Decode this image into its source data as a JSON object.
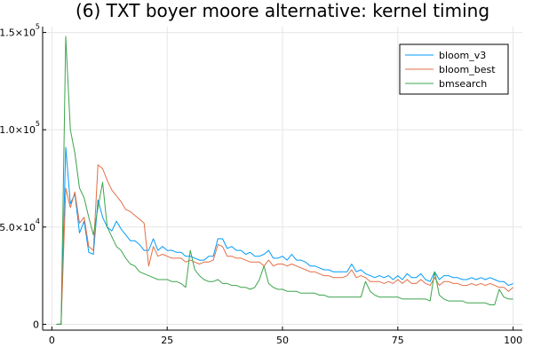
{
  "chart_data": {
    "type": "line",
    "title": "(6) TXT boyer moore alternative: kernel timing",
    "xlabel": "",
    "ylabel": "",
    "xlim": [
      -2,
      102
    ],
    "ylim": [
      -3000,
      153000
    ],
    "grid": true,
    "legend_position": "top-right",
    "x_ticks": [
      {
        "value": 0,
        "label": "0"
      },
      {
        "value": 25,
        "label": "25"
      },
      {
        "value": 50,
        "label": "50"
      },
      {
        "value": 75,
        "label": "75"
      },
      {
        "value": 100,
        "label": "100"
      }
    ],
    "y_ticks": [
      {
        "value": 0,
        "mantissa": "0",
        "exponent": ""
      },
      {
        "value": 50000,
        "mantissa": "5.0×10",
        "exponent": "4"
      },
      {
        "value": 100000,
        "mantissa": "1.0×10",
        "exponent": "5"
      },
      {
        "value": 150000,
        "mantissa": "1.5×10",
        "exponent": "5"
      }
    ],
    "x": [
      1,
      2,
      3,
      4,
      5,
      6,
      7,
      8,
      9,
      10,
      11,
      12,
      13,
      14,
      15,
      16,
      17,
      18,
      19,
      20,
      21,
      22,
      23,
      24,
      25,
      26,
      27,
      28,
      29,
      30,
      31,
      32,
      33,
      34,
      35,
      36,
      37,
      38,
      39,
      40,
      41,
      42,
      43,
      44,
      45,
      46,
      47,
      48,
      49,
      50,
      51,
      52,
      53,
      54,
      55,
      56,
      57,
      58,
      59,
      60,
      61,
      62,
      63,
      64,
      65,
      66,
      67,
      68,
      69,
      70,
      71,
      72,
      73,
      74,
      75,
      76,
      77,
      78,
      79,
      80,
      81,
      82,
      83,
      84,
      85,
      86,
      87,
      88,
      89,
      90,
      91,
      92,
      93,
      94,
      95,
      96,
      97,
      98,
      99,
      100
    ],
    "series": [
      {
        "name": "bloom_v3",
        "color": "#009af9",
        "values": [
          0,
          0,
          91000,
          62000,
          67000,
          47000,
          53000,
          37000,
          36000,
          64000,
          55000,
          50000,
          48000,
          53000,
          49000,
          46000,
          43000,
          43000,
          41000,
          38000,
          38000,
          44000,
          38000,
          40000,
          38000,
          38000,
          37000,
          37000,
          35000,
          35000,
          34000,
          33000,
          33000,
          35000,
          35000,
          44000,
          44000,
          39000,
          40000,
          38000,
          38000,
          36000,
          37000,
          35000,
          35000,
          36000,
          38000,
          34000,
          34000,
          35000,
          33000,
          36000,
          33000,
          33000,
          32000,
          30000,
          30000,
          29000,
          28000,
          28000,
          27000,
          27000,
          27000,
          27000,
          31000,
          27000,
          28000,
          26000,
          25000,
          24000,
          25000,
          24000,
          25000,
          23000,
          25000,
          23000,
          26000,
          24000,
          24000,
          26000,
          23000,
          22000,
          27000,
          23000,
          25000,
          25000,
          24000,
          24000,
          23000,
          23000,
          24000,
          23000,
          24000,
          23000,
          24000,
          23000,
          22000,
          22000,
          20000,
          21000
        ]
      },
      {
        "name": "bloom_best",
        "color": "#e26f46",
        "values": [
          0,
          0,
          70000,
          60000,
          68000,
          52000,
          55000,
          40000,
          38000,
          82000,
          80000,
          74000,
          69000,
          66000,
          63000,
          59000,
          58000,
          56000,
          54000,
          52000,
          30000,
          40000,
          35000,
          36000,
          35000,
          34000,
          34000,
          34000,
          32000,
          33000,
          32000,
          31000,
          32000,
          32000,
          33000,
          41000,
          40000,
          35000,
          35000,
          34000,
          34000,
          33000,
          32000,
          32000,
          32000,
          30000,
          33000,
          30000,
          31000,
          31000,
          30000,
          31000,
          30000,
          29000,
          28000,
          27000,
          27000,
          26000,
          25000,
          25000,
          24000,
          24000,
          24000,
          25000,
          28000,
          24000,
          25000,
          24000,
          22000,
          22000,
          22000,
          21000,
          22000,
          21000,
          23000,
          21000,
          23000,
          21000,
          21000,
          23000,
          21000,
          20000,
          24000,
          20000,
          22000,
          22000,
          21000,
          21000,
          20000,
          20000,
          21000,
          20000,
          21000,
          20000,
          21000,
          20000,
          19000,
          19000,
          17000,
          19000
        ]
      },
      {
        "name": "bmsearch",
        "color": "#3da44d",
        "values": [
          0,
          0,
          148000,
          100000,
          88000,
          70000,
          65000,
          55000,
          46000,
          60000,
          73000,
          50000,
          45000,
          40000,
          38000,
          34000,
          31000,
          30000,
          27000,
          26000,
          25000,
          24000,
          23000,
          23000,
          23000,
          22000,
          22000,
          21000,
          19000,
          38000,
          28000,
          25000,
          23000,
          22000,
          22000,
          23000,
          21000,
          21000,
          20000,
          20000,
          19000,
          19000,
          18000,
          19000,
          23000,
          30000,
          21000,
          19000,
          18000,
          18000,
          17000,
          17000,
          17000,
          16000,
          16000,
          16000,
          16000,
          15000,
          15000,
          14000,
          14000,
          14000,
          14000,
          14000,
          14000,
          14000,
          14000,
          22000,
          17000,
          15000,
          14000,
          14000,
          14000,
          14000,
          14000,
          13000,
          13000,
          13000,
          13000,
          13000,
          13000,
          12000,
          27000,
          15000,
          13000,
          12000,
          12000,
          12000,
          12000,
          11000,
          11000,
          11000,
          11000,
          11000,
          10000,
          10000,
          18000,
          14000,
          13000,
          13000
        ]
      }
    ]
  }
}
